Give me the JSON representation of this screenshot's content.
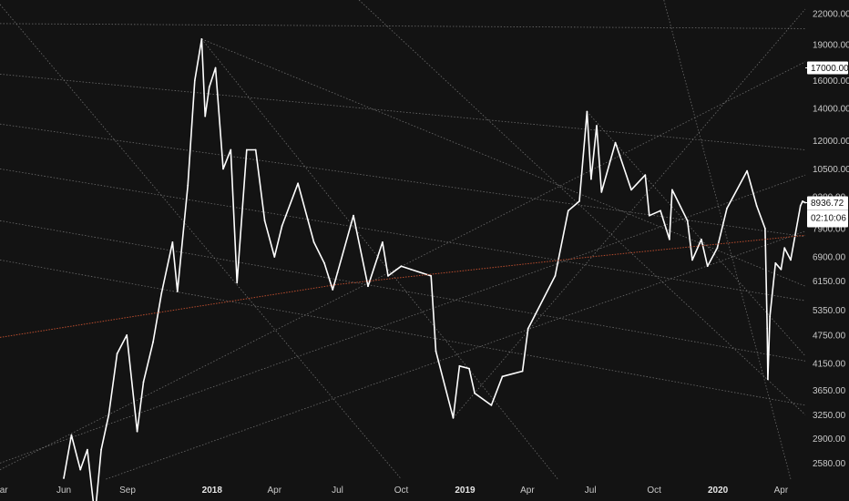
{
  "chart_data": {
    "type": "line",
    "title": "",
    "xlabel": "",
    "ylabel": "",
    "y_scale": "log",
    "ylim": [
      2390,
      23500
    ],
    "x_range": [
      "2017-03-01",
      "2020-05-06"
    ],
    "grid": false,
    "colors": {
      "background": "#131313",
      "price": "#ffffff",
      "lines": "#8a8a8a",
      "moving_average": "#b84c2e",
      "axis_text": "#c9c9c9"
    },
    "x_ticks": [
      {
        "date": "2017-03-01",
        "label": "Mar"
      },
      {
        "date": "2017-06-01",
        "label": "Jun"
      },
      {
        "date": "2017-09-01",
        "label": "Sep"
      },
      {
        "date": "2018-01-01",
        "label": "2018"
      },
      {
        "date": "2018-04-01",
        "label": "Apr"
      },
      {
        "date": "2018-07-01",
        "label": "Jul"
      },
      {
        "date": "2018-10-01",
        "label": "Oct"
      },
      {
        "date": "2019-01-01",
        "label": "2019"
      },
      {
        "date": "2019-04-01",
        "label": "Apr"
      },
      {
        "date": "2019-07-01",
        "label": "Jul"
      },
      {
        "date": "2019-10-01",
        "label": "Oct"
      },
      {
        "date": "2020-01-01",
        "label": "2020"
      },
      {
        "date": "2020-04-01",
        "label": "Apr"
      }
    ],
    "y_ticks": [
      22000,
      19000,
      16000,
      14000,
      12000,
      10500,
      9200,
      7900,
      6900,
      6150,
      5350,
      4750,
      4150,
      3650,
      3250,
      2900,
      2580
    ],
    "y_tick_labels": [
      "22000.00",
      "19000.00",
      "16000.00",
      "14000.00",
      "12000.00",
      "10500.00",
      "9200.00",
      "7900.00",
      "6900.00",
      "6150.00",
      "5350.00",
      "4750.00",
      "4150.00",
      "3650.00",
      "3250.00",
      "2900.00",
      "2580.00"
    ],
    "price_tags": [
      {
        "value": 17000,
        "label": "17000.00"
      },
      {
        "value": 8936.72,
        "label": "8936.72",
        "sublabel": "02:10:06"
      }
    ],
    "series": [
      {
        "values_kind": "price",
        "points": [
          [
            "2017-06-01",
            2400
          ],
          [
            "2017-06-12",
            2950
          ],
          [
            "2017-06-25",
            2500
          ],
          [
            "2017-07-05",
            2750
          ],
          [
            "2017-07-16",
            2000
          ],
          [
            "2017-07-25",
            2750
          ],
          [
            "2017-08-05",
            3250
          ],
          [
            "2017-08-17",
            4350
          ],
          [
            "2017-08-31",
            4750
          ],
          [
            "2017-09-15",
            3000
          ],
          [
            "2017-09-24",
            3800
          ],
          [
            "2017-10-08",
            4600
          ],
          [
            "2017-10-20",
            5800
          ],
          [
            "2017-11-05",
            7400
          ],
          [
            "2017-11-12",
            5850
          ],
          [
            "2017-11-27",
            9700
          ],
          [
            "2017-12-07",
            16000
          ],
          [
            "2017-12-17",
            19500
          ],
          [
            "2017-12-22",
            13500
          ],
          [
            "2017-12-28",
            15500
          ],
          [
            "2018-01-06",
            17000
          ],
          [
            "2018-01-17",
            10500
          ],
          [
            "2018-01-28",
            11500
          ],
          [
            "2018-02-06",
            6100
          ],
          [
            "2018-02-20",
            11500
          ],
          [
            "2018-03-05",
            11500
          ],
          [
            "2018-03-18",
            8200
          ],
          [
            "2018-04-01",
            6900
          ],
          [
            "2018-04-12",
            8000
          ],
          [
            "2018-05-05",
            9800
          ],
          [
            "2018-05-28",
            7400
          ],
          [
            "2018-06-12",
            6700
          ],
          [
            "2018-06-24",
            5900
          ],
          [
            "2018-07-01",
            6400
          ],
          [
            "2018-07-24",
            8400
          ],
          [
            "2018-08-14",
            6000
          ],
          [
            "2018-09-04",
            7400
          ],
          [
            "2018-09-12",
            6300
          ],
          [
            "2018-10-01",
            6600
          ],
          [
            "2018-10-15",
            6500
          ],
          [
            "2018-11-13",
            6300
          ],
          [
            "2018-11-20",
            4400
          ],
          [
            "2018-12-15",
            3200
          ],
          [
            "2018-12-24",
            4100
          ],
          [
            "2019-01-07",
            4050
          ],
          [
            "2019-01-15",
            3600
          ],
          [
            "2019-02-08",
            3400
          ],
          [
            "2019-02-24",
            3900
          ],
          [
            "2019-03-25",
            4000
          ],
          [
            "2019-04-02",
            4900
          ],
          [
            "2019-05-11",
            6300
          ],
          [
            "2019-05-30",
            8600
          ],
          [
            "2019-06-15",
            9000
          ],
          [
            "2019-06-26",
            13800
          ],
          [
            "2019-07-02",
            10000
          ],
          [
            "2019-07-10",
            12900
          ],
          [
            "2019-07-17",
            9400
          ],
          [
            "2019-08-06",
            11900
          ],
          [
            "2019-08-29",
            9500
          ],
          [
            "2019-09-18",
            10200
          ],
          [
            "2019-09-24",
            8400
          ],
          [
            "2019-10-10",
            8600
          ],
          [
            "2019-10-23",
            7500
          ],
          [
            "2019-10-27",
            9500
          ],
          [
            "2019-11-18",
            8200
          ],
          [
            "2019-11-25",
            6800
          ],
          [
            "2019-12-08",
            7500
          ],
          [
            "2019-12-17",
            6600
          ],
          [
            "2019-12-31",
            7200
          ],
          [
            "2020-01-14",
            8700
          ],
          [
            "2020-02-12",
            10400
          ],
          [
            "2020-02-26",
            8800
          ],
          [
            "2020-03-09",
            7900
          ],
          [
            "2020-03-12",
            4900
          ],
          [
            "2020-03-13",
            3850
          ],
          [
            "2020-03-16",
            5200
          ],
          [
            "2020-03-24",
            6700
          ],
          [
            "2020-04-01",
            6500
          ],
          [
            "2020-04-06",
            7200
          ],
          [
            "2020-04-15",
            6800
          ],
          [
            "2020-04-29",
            8800
          ],
          [
            "2020-05-02",
            9000
          ],
          [
            "2020-05-06",
            8936.72
          ]
        ]
      },
      {
        "values_kind": "moving_average",
        "points": [
          [
            "2017-03-01",
            4700
          ],
          [
            "2018-07-01",
            6050
          ],
          [
            "2019-07-01",
            6900
          ],
          [
            "2020-05-06",
            7650
          ]
        ]
      }
    ],
    "trendlines": [
      {
        "from": [
          "2017-03-01",
          16500
        ],
        "to": [
          "2020-05-06",
          11500
        ]
      },
      {
        "from": [
          "2017-03-01",
          13000
        ],
        "to": [
          "2020-05-06",
          7600
        ]
      },
      {
        "from": [
          "2017-03-01",
          10500
        ],
        "to": [
          "2020-05-06",
          5600
        ]
      },
      {
        "from": [
          "2017-03-01",
          8200
        ],
        "to": [
          "2020-05-06",
          4200
        ]
      },
      {
        "from": [
          "2017-03-01",
          6800
        ],
        "to": [
          "2020-05-06",
          3400
        ]
      },
      {
        "from": [
          "2017-03-01",
          21000
        ],
        "to": [
          "2020-05-06",
          20500
        ]
      },
      {
        "from": [
          "2017-03-01",
          2500
        ],
        "to": [
          "2020-05-06",
          17500
        ]
      },
      {
        "from": [
          "2017-03-01",
          2580
        ],
        "to": [
          "2020-05-06",
          10200
        ]
      },
      {
        "from": [
          "2017-08-01",
          2390
        ],
        "to": [
          "2020-05-06",
          7800
        ]
      },
      {
        "from": [
          "2017-12-17",
          19500
        ],
        "to": [
          "2019-05-15",
          2390
        ]
      },
      {
        "from": [
          "2017-12-17",
          19500
        ],
        "to": [
          "2020-05-06",
          6000
        ]
      },
      {
        "from": [
          "2017-03-01",
          23000
        ],
        "to": [
          "2018-10-01",
          2390
        ]
      },
      {
        "from": [
          "2018-08-01",
          23500
        ],
        "to": [
          "2020-05-06",
          3250
        ]
      },
      {
        "from": [
          "2019-06-26",
          13800
        ],
        "to": [
          "2020-05-06",
          4300
        ]
      },
      {
        "from": [
          "2018-12-15",
          3200
        ],
        "to": [
          "2020-05-06",
          22500
        ]
      },
      {
        "from": [
          "2019-10-15",
          23500
        ],
        "to": [
          "2020-04-15",
          2390
        ]
      }
    ]
  }
}
